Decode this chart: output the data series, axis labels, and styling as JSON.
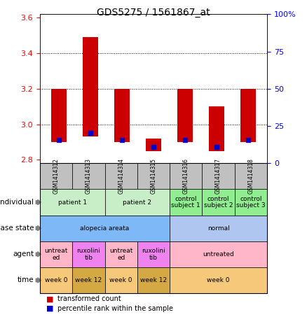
{
  "title": "GDS5275 / 1561867_at",
  "samples": [
    "GSM1414312",
    "GSM1414313",
    "GSM1414314",
    "GSM1414315",
    "GSM1414316",
    "GSM1414317",
    "GSM1414318"
  ],
  "bar_bottoms": [
    2.9,
    2.93,
    2.9,
    2.85,
    2.9,
    2.85,
    2.9
  ],
  "bar_tops": [
    3.2,
    3.49,
    3.2,
    2.92,
    3.2,
    3.1,
    3.2
  ],
  "blue_pos": [
    2.91,
    2.95,
    2.91,
    2.87,
    2.91,
    2.87,
    2.91
  ],
  "ylim": [
    2.78,
    3.62
  ],
  "yticks": [
    2.8,
    3.0,
    3.2,
    3.4,
    3.6
  ],
  "bar_color": "#cc0000",
  "blue_color": "#0000cc",
  "row_labels": [
    "individual",
    "disease state",
    "agent",
    "time"
  ],
  "individual_cells": [
    {
      "cols": [
        0,
        1
      ],
      "label": "patient 1",
      "color": "#c8eec8"
    },
    {
      "cols": [
        2,
        3
      ],
      "label": "patient 2",
      "color": "#c8eec8"
    },
    {
      "cols": [
        4
      ],
      "label": "control\nsubject 1",
      "color": "#90ee90"
    },
    {
      "cols": [
        5
      ],
      "label": "control\nsubject 2",
      "color": "#90ee90"
    },
    {
      "cols": [
        6
      ],
      "label": "control\nsubject 3",
      "color": "#90ee90"
    }
  ],
  "disease_cells": [
    {
      "cols": [
        0,
        1,
        2,
        3
      ],
      "label": "alopecia areata",
      "color": "#7eb8f7"
    },
    {
      "cols": [
        4,
        5,
        6
      ],
      "label": "normal",
      "color": "#aec6f0"
    }
  ],
  "agent_cells": [
    {
      "cols": [
        0
      ],
      "label": "untreat\ned",
      "color": "#ffb6c8"
    },
    {
      "cols": [
        1
      ],
      "label": "ruxolini\ntib",
      "color": "#ee82ee"
    },
    {
      "cols": [
        2
      ],
      "label": "untreat\ned",
      "color": "#ffb6c8"
    },
    {
      "cols": [
        3
      ],
      "label": "ruxolini\ntib",
      "color": "#ee82ee"
    },
    {
      "cols": [
        4,
        5,
        6
      ],
      "label": "untreated",
      "color": "#ffb6c8"
    }
  ],
  "time_cells": [
    {
      "cols": [
        0
      ],
      "label": "week 0",
      "color": "#f5c87a"
    },
    {
      "cols": [
        1
      ],
      "label": "week 12",
      "color": "#d4a843"
    },
    {
      "cols": [
        2
      ],
      "label": "week 0",
      "color": "#f5c87a"
    },
    {
      "cols": [
        3
      ],
      "label": "week 12",
      "color": "#d4a843"
    },
    {
      "cols": [
        4,
        5,
        6
      ],
      "label": "week 0",
      "color": "#f5c87a"
    }
  ],
  "sample_header_color": "#c0c0c0",
  "arrow_color": "#808080"
}
